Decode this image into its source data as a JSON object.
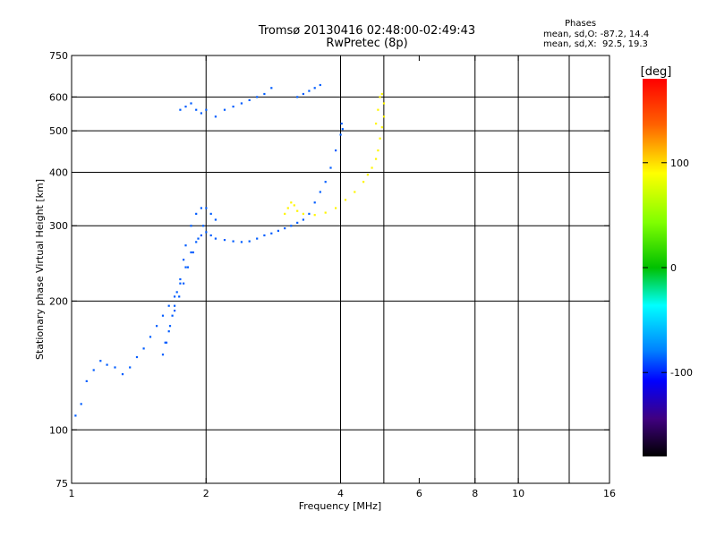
{
  "title_line1": "Tromsø 20130416 02:48:00-02:49:43",
  "title_line2": "RwPretec (8p)",
  "phases": {
    "heading": "Phases",
    "line_o": "mean, sd,O: -87.2, 14.4",
    "line_x": "mean, sd,X:  92.5, 19.3"
  },
  "colorbar": {
    "unit": "[deg]",
    "ticks": [
      {
        "value": 100,
        "label": "100"
      },
      {
        "value": 0,
        "label": "0"
      },
      {
        "value": -100,
        "label": "-100"
      }
    ],
    "range": [
      -180,
      180
    ]
  },
  "chart_data": {
    "type": "scatter",
    "title": "Tromsø 20130416 02:48:00-02:49:43 RwPretec (8p)",
    "xlabel": "Frequency [MHz]",
    "ylabel": "Stationary phase Virtual Height [km]",
    "x_scale": "log",
    "y_scale": "log",
    "xlim": [
      1,
      16
    ],
    "ylim": [
      75,
      750
    ],
    "x_ticks": [
      1,
      2,
      4,
      6,
      8,
      10,
      16
    ],
    "x_tick_labels": [
      "1",
      "2",
      "4",
      "6",
      "8",
      "10",
      "16"
    ],
    "y_ticks": [
      75,
      100,
      200,
      300,
      400,
      500,
      600,
      750
    ],
    "y_tick_labels": [
      "75",
      "100",
      "200",
      "300",
      "400",
      "500",
      "600",
      "750"
    ],
    "x_gridlines": [
      2,
      4,
      5,
      8,
      10,
      13
    ],
    "y_gridlines": [
      100,
      200,
      300,
      400,
      500,
      600
    ],
    "grid": true,
    "color_encoding": "phase in degrees",
    "series": [
      {
        "description": "O-mode trace, phase about -87",
        "phase": -87.2,
        "x": [
          1.02,
          1.05,
          1.08,
          1.12,
          1.16,
          1.2,
          1.25,
          1.3,
          1.35,
          1.4,
          1.45,
          1.5,
          1.55,
          1.6,
          1.65,
          1.7,
          1.75,
          1.8,
          1.85,
          1.9,
          1.95,
          2.0,
          2.05,
          2.1,
          2.2,
          2.3,
          2.4,
          2.5,
          2.6,
          2.7,
          2.8,
          2.9,
          3.0,
          3.1,
          3.2,
          3.3,
          3.4,
          3.5,
          3.6,
          3.7,
          3.8,
          3.9,
          4.0,
          4.02,
          4.04,
          1.62,
          1.65,
          1.68,
          1.7,
          1.72,
          1.75,
          1.78,
          1.8,
          1.85,
          1.9,
          1.95,
          2.0,
          2.05,
          2.1,
          1.6,
          1.63,
          1.66,
          1.7,
          1.74,
          1.78,
          1.82,
          1.87,
          1.92,
          1.97,
          1.75,
          1.8,
          1.85,
          1.9,
          1.95,
          2.0,
          2.1,
          2.2,
          2.3,
          2.4,
          2.5,
          2.6,
          2.7,
          2.8,
          3.2,
          3.3,
          3.4,
          3.5,
          3.6
        ],
        "y": [
          108,
          115,
          130,
          138,
          145,
          142,
          140,
          135,
          140,
          148,
          155,
          165,
          175,
          185,
          195,
          205,
          220,
          240,
          260,
          275,
          285,
          290,
          285,
          280,
          278,
          276,
          275,
          276,
          280,
          285,
          288,
          292,
          296,
          300,
          305,
          310,
          320,
          340,
          360,
          380,
          410,
          450,
          490,
          520,
          505,
          160,
          170,
          185,
          195,
          210,
          225,
          250,
          270,
          300,
          320,
          330,
          330,
          320,
          310,
          150,
          160,
          175,
          190,
          205,
          220,
          240,
          260,
          280,
          300,
          560,
          570,
          580,
          560,
          550,
          560,
          540,
          560,
          570,
          580,
          590,
          600,
          610,
          630,
          600,
          610,
          620,
          630,
          640
        ]
      },
      {
        "description": "X-mode trace, phase about +93",
        "phase": 92.5,
        "x": [
          3.0,
          3.05,
          3.1,
          3.15,
          3.2,
          3.3,
          3.5,
          3.7,
          3.9,
          4.1,
          4.3,
          4.5,
          4.6,
          4.7,
          4.8,
          4.85,
          4.9,
          4.95,
          5.0,
          5.0,
          4.95,
          4.9,
          4.85,
          4.8
        ],
        "y": [
          320,
          330,
          340,
          335,
          325,
          320,
          318,
          322,
          330,
          345,
          360,
          380,
          395,
          410,
          430,
          450,
          480,
          510,
          540,
          580,
          610,
          600,
          560,
          520
        ]
      }
    ]
  }
}
